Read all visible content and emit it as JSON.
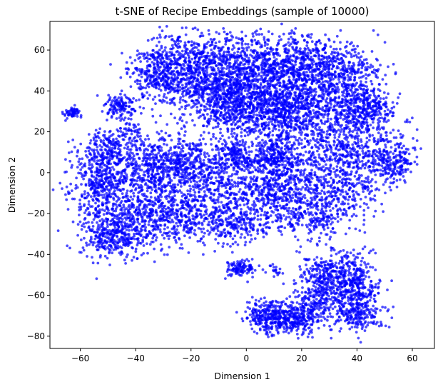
{
  "chart_data": {
    "type": "scatter",
    "title": "t-SNE of Recipe Embeddings (sample of 10000)",
    "xlabel": "Dimension 1",
    "ylabel": "Dimension 2",
    "xlim": [
      -71,
      68
    ],
    "ylim": [
      -86,
      74
    ],
    "xticks": [
      -60,
      -40,
      -20,
      0,
      20,
      40,
      60
    ],
    "yticks": [
      -80,
      -60,
      -40,
      -20,
      0,
      20,
      40,
      60
    ],
    "xtick_labels": [
      "−60",
      "−40",
      "−20",
      "0",
      "20",
      "40",
      "60"
    ],
    "ytick_labels": [
      "−80",
      "−60",
      "−40",
      "−20",
      "0",
      "20",
      "40",
      "60"
    ],
    "grid": false,
    "sample_size": 10000,
    "marker_color": "#0000ff",
    "marker_opacity": 0.7,
    "clusters": [
      {
        "center": [
          -63,
          29
        ],
        "spread": [
          1.6,
          1.6
        ],
        "n": 60
      },
      {
        "center": [
          -45,
          32
        ],
        "spread": [
          3,
          3
        ],
        "n": 130
      },
      {
        "center": [
          -42,
          21
        ],
        "spread": [
          2,
          2
        ],
        "n": 30
      },
      {
        "center": [
          -35,
          57
        ],
        "spread": [
          2.5,
          1
        ],
        "n": 20
      },
      {
        "center": [
          -30,
          46
        ],
        "spread": [
          6,
          6
        ],
        "n": 340
      },
      {
        "center": [
          -20,
          55
        ],
        "spread": [
          8,
          7
        ],
        "n": 440
      },
      {
        "center": [
          -12,
          40
        ],
        "spread": [
          6,
          6
        ],
        "n": 260
      },
      {
        "center": [
          -3,
          30
        ],
        "spread": [
          10,
          9
        ],
        "n": 520
      },
      {
        "center": [
          -2,
          52
        ],
        "spread": [
          9,
          8
        ],
        "n": 480
      },
      {
        "center": [
          10,
          42
        ],
        "spread": [
          10,
          10
        ],
        "n": 620
      },
      {
        "center": [
          18,
          30
        ],
        "spread": [
          10,
          8
        ],
        "n": 560
      },
      {
        "center": [
          22,
          55
        ],
        "spread": [
          10,
          6
        ],
        "n": 420
      },
      {
        "center": [
          35,
          45
        ],
        "spread": [
          8,
          8
        ],
        "n": 360
      },
      {
        "center": [
          40,
          30
        ],
        "spread": [
          5,
          6
        ],
        "n": 280
      },
      {
        "center": [
          47,
          32
        ],
        "spread": [
          4,
          4
        ],
        "n": 90
      },
      {
        "center": [
          45,
          8
        ],
        "spread": [
          8,
          8
        ],
        "n": 260
      },
      {
        "center": [
          53,
          5
        ],
        "spread": [
          4,
          4
        ],
        "n": 130
      },
      {
        "center": [
          30,
          10
        ],
        "spread": [
          9,
          9
        ],
        "n": 360
      },
      {
        "center": [
          -50,
          12
        ],
        "spread": [
          5,
          5
        ],
        "n": 200
      },
      {
        "center": [
          -52,
          -5
        ],
        "spread": [
          6,
          9
        ],
        "n": 420
      },
      {
        "center": [
          -45,
          -25
        ],
        "spread": [
          8,
          8
        ],
        "n": 440
      },
      {
        "center": [
          -50,
          -33
        ],
        "spread": [
          5,
          4
        ],
        "n": 160
      },
      {
        "center": [
          -35,
          0
        ],
        "spread": [
          7,
          9
        ],
        "n": 380
      },
      {
        "center": [
          -25,
          5
        ],
        "spread": [
          7,
          6
        ],
        "n": 360
      },
      {
        "center": [
          -25,
          -20
        ],
        "spread": [
          7,
          7
        ],
        "n": 360
      },
      {
        "center": [
          -12,
          -5
        ],
        "spread": [
          6,
          8
        ],
        "n": 260
      },
      {
        "center": [
          -5,
          -25
        ],
        "spread": [
          7,
          5
        ],
        "n": 280
      },
      {
        "center": [
          -3,
          8
        ],
        "spread": [
          4,
          4
        ],
        "n": 200
      },
      {
        "center": [
          10,
          8
        ],
        "spread": [
          4,
          4
        ],
        "n": 200
      },
      {
        "center": [
          5,
          -8
        ],
        "spread": [
          7,
          7
        ],
        "n": 260
      },
      {
        "center": [
          15,
          -5
        ],
        "spread": [
          8,
          7
        ],
        "n": 320
      },
      {
        "center": [
          22,
          -22
        ],
        "spread": [
          7,
          5
        ],
        "n": 220
      },
      {
        "center": [
          35,
          -10
        ],
        "spread": [
          7,
          7
        ],
        "n": 220
      },
      {
        "center": [
          -2,
          -47
        ],
        "spread": [
          2.5,
          2
        ],
        "n": 110
      },
      {
        "center": [
          10,
          -48
        ],
        "spread": [
          1.5,
          1.5
        ],
        "n": 20
      },
      {
        "center": [
          7,
          -70
        ],
        "spread": [
          4,
          4
        ],
        "n": 220
      },
      {
        "center": [
          17,
          -71
        ],
        "spread": [
          5,
          4
        ],
        "n": 320
      },
      {
        "center": [
          25,
          -60
        ],
        "spread": [
          4,
          6
        ],
        "n": 200
      },
      {
        "center": [
          31,
          -50
        ],
        "spread": [
          5,
          7
        ],
        "n": 300
      },
      {
        "center": [
          40,
          -55
        ],
        "spread": [
          4,
          8
        ],
        "n": 300
      },
      {
        "center": [
          40,
          -70
        ],
        "spread": [
          5,
          4
        ],
        "n": 200
      }
    ]
  }
}
